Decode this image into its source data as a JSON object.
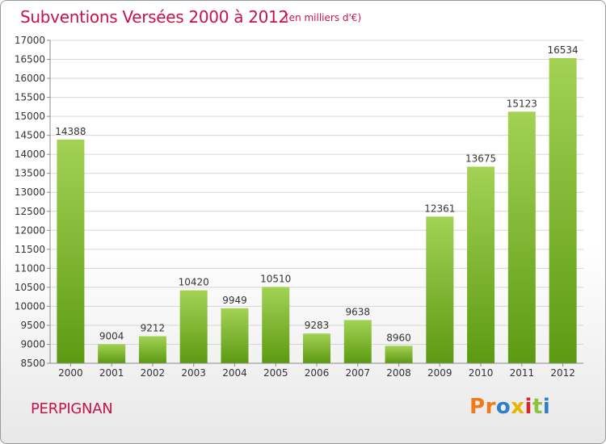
{
  "header": {
    "title": "Subventions Versées 2000 à 2012",
    "subtitle": "(en milliers d'€)"
  },
  "footer": {
    "location": "PERPIGNAN",
    "logo_text": "Proxiti"
  },
  "colors": {
    "title": "#c8124a",
    "bar_top": "#a3d255",
    "bar_bottom": "#5c9a12",
    "logo": [
      "#f07a1a",
      "#f07a1a",
      "#2f7fc8",
      "#e8b400",
      "#d8282d",
      "#8bc43a",
      "#2f7fc8"
    ]
  },
  "chart_data": {
    "type": "bar",
    "categories": [
      "2000",
      "2001",
      "2002",
      "2003",
      "2004",
      "2005",
      "2006",
      "2007",
      "2008",
      "2009",
      "2010",
      "2011",
      "2012"
    ],
    "values": [
      14388,
      9004,
      9212,
      10420,
      9949,
      10510,
      9283,
      9638,
      8960,
      12361,
      13675,
      15123,
      16534
    ],
    "ylim": [
      8500,
      17000
    ],
    "yticks": [
      8500,
      9000,
      9500,
      10000,
      10500,
      11000,
      11500,
      12000,
      12500,
      13000,
      13500,
      14000,
      14500,
      15000,
      15500,
      16000,
      16500,
      17000
    ],
    "grid": true,
    "title": "Subventions Versées 2000 à 2012",
    "xlabel": "",
    "ylabel": ""
  }
}
